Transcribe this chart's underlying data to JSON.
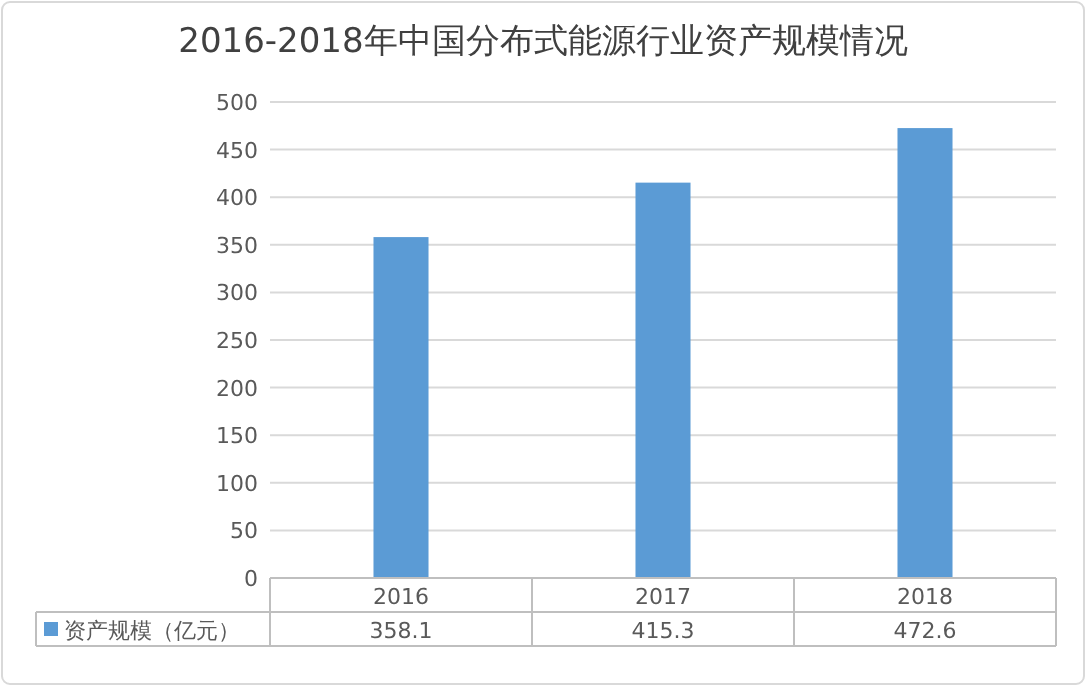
{
  "chart_data": {
    "type": "bar",
    "title": "2016-2018年中国分布式能源行业资产规模情况",
    "categories": [
      "2016",
      "2017",
      "2018"
    ],
    "series": [
      {
        "name": "资产规模（亿元）",
        "color": "#5b9bd5",
        "values": [
          358.1,
          415.3,
          472.6
        ]
      }
    ],
    "ylim": [
      0,
      500
    ],
    "yticks": [
      0,
      50,
      100,
      150,
      200,
      250,
      300,
      350,
      400,
      450,
      500
    ],
    "grid": "y",
    "data_labels": true,
    "legend": "bottom"
  }
}
